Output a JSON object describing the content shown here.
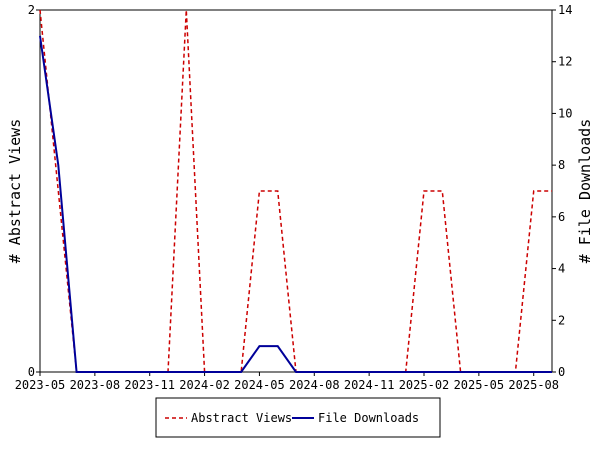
{
  "chart_data": {
    "type": "line",
    "categories": [
      "2023-05",
      null,
      null,
      "2023-08",
      null,
      null,
      "2023-11",
      null,
      null,
      "2024-02",
      null,
      null,
      "2024-05",
      null,
      null,
      "2024-08",
      null,
      null,
      "2024-11",
      null,
      null,
      "2025-02",
      null,
      null,
      "2025-05",
      null,
      null,
      "2025-08",
      null
    ],
    "series": [
      {
        "name": "Abstract Views",
        "color": "#cc0000",
        "axis": "y",
        "values": [
          2,
          1,
          0,
          0,
          0,
          0,
          0,
          0,
          2,
          0,
          0,
          0,
          1,
          1,
          0,
          0,
          0,
          0,
          0,
          0,
          0,
          1,
          1,
          0,
          0,
          0,
          0,
          1,
          1
        ]
      },
      {
        "name": "File Downloads",
        "color": "#000099",
        "axis": "y2",
        "values": [
          13,
          8,
          0,
          0,
          0,
          0,
          0,
          0,
          0,
          0,
          0,
          0,
          1,
          1,
          0,
          0,
          0,
          0,
          0,
          0,
          0,
          0,
          0,
          0,
          0,
          0,
          0,
          0,
          0
        ]
      }
    ],
    "ylabel": "# Abstract Views",
    "y2label": "# File Downloads",
    "ylim": [
      0,
      2
    ],
    "yticks": [
      0,
      2
    ],
    "y2lim": [
      0,
      14
    ],
    "y2ticks": [
      0,
      2,
      4,
      6,
      8,
      10,
      12,
      14
    ],
    "legend": "bottom"
  }
}
